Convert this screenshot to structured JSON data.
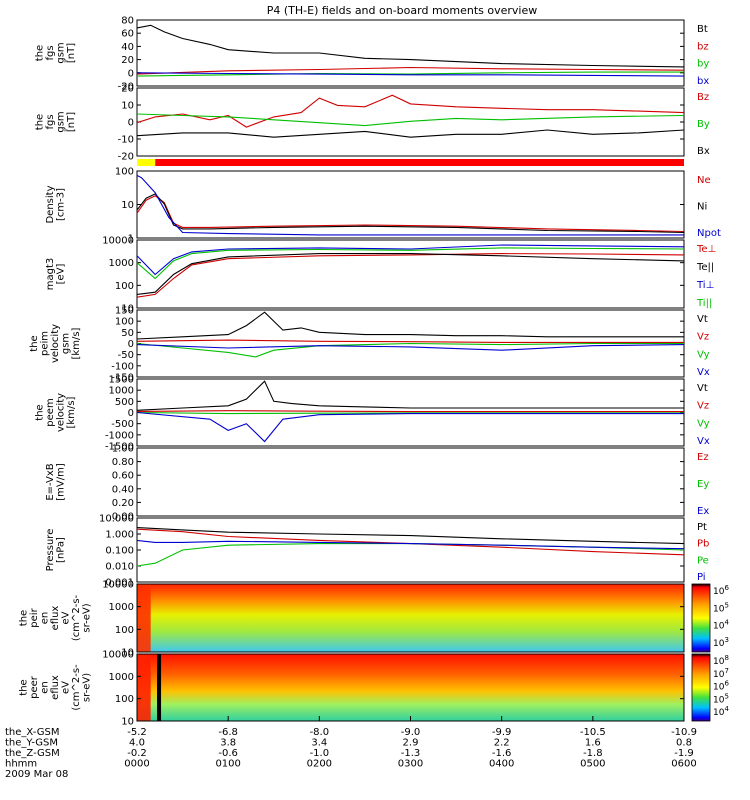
{
  "chart_data": {
    "type": "line",
    "title": "P4 (TH-E) fields and on-board moments overview",
    "date_label": "2009 Mar 08",
    "x_rows": [
      {
        "name": "the_X-GSM",
        "values": [
          "-5.2",
          "-6.8",
          "-8.0",
          "-9.0",
          "-9.9",
          "-10.5",
          "-10.9"
        ]
      },
      {
        "name": "the_Y-GSM",
        "values": [
          "4.0",
          "3.8",
          "3.4",
          "2.9",
          "2.2",
          "1.6",
          "0.8"
        ]
      },
      {
        "name": "the_Z-GSM",
        "values": [
          "-0.2",
          "-0.6",
          "-1.0",
          "-1.3",
          "-1.6",
          "-1.8",
          "-1.9"
        ]
      },
      {
        "name": "hhmm",
        "values": [
          "0000",
          "0100",
          "0200",
          "0300",
          "0400",
          "0500",
          "0600"
        ]
      }
    ],
    "x_range_hours": [
      0,
      6
    ],
    "panels": [
      {
        "id": "fgs_mag",
        "ylabel_lines": [
          "the",
          "fgs",
          "gsm",
          "[nT]"
        ],
        "ytick_labels": [
          "80",
          "60",
          "40",
          "20",
          "0",
          "-20"
        ],
        "ylim": [
          -20,
          80
        ],
        "scale": "linear",
        "legend": [
          {
            "label": "Bt",
            "color": "#000000"
          },
          {
            "label": "bz",
            "color": "#d00000"
          },
          {
            "label": "by",
            "color": "#00c000"
          },
          {
            "label": "bx",
            "color": "#0000d0"
          }
        ]
      },
      {
        "id": "fgs_comp",
        "ylabel_lines": [
          "the",
          "fgs",
          "gsm",
          "[nT]"
        ],
        "ytick_labels": [
          "20",
          "10",
          "0",
          "-10",
          "-20"
        ],
        "ylim": [
          -25,
          22
        ],
        "scale": "linear",
        "legend": [
          {
            "label": "Bz",
            "color": "#d00000"
          },
          {
            "label": "By",
            "color": "#00c000"
          },
          {
            "label": "Bx",
            "color": "#000000"
          }
        ]
      },
      {
        "id": "density",
        "ylabel_lines": [
          "Density",
          "[cm-3]"
        ],
        "ytick_labels": [
          "100",
          "10",
          "1"
        ],
        "ylim": [
          0.3,
          150
        ],
        "scale": "log",
        "legend": [
          {
            "label": "Ne",
            "color": "#d00000"
          },
          {
            "label": "Ni",
            "color": "#000000"
          },
          {
            "label": "Npot",
            "color": "#0000d0"
          }
        ]
      },
      {
        "id": "temperature",
        "ylabel_lines": [
          "magt3",
          "[eV]"
        ],
        "ytick_labels": [
          "10000",
          "1000",
          "100",
          "10"
        ],
        "ylim": [
          10,
          10000
        ],
        "scale": "log",
        "legend": [
          {
            "label": "Te⊥",
            "color": "#d00000"
          },
          {
            "label": "Te||",
            "color": "#000000"
          },
          {
            "label": "Ti⊥",
            "color": "#0000d0"
          },
          {
            "label": "Ti||",
            "color": "#00c000"
          }
        ]
      },
      {
        "id": "peim_velocity",
        "ylabel_lines": [
          "the",
          "peim",
          "velocity",
          "gsm",
          "[km/s]"
        ],
        "ytick_labels": [
          "150",
          "100",
          "50",
          "0",
          "-50",
          "-100",
          "-150"
        ],
        "ylim": [
          -150,
          150
        ],
        "scale": "linear",
        "legend": [
          {
            "label": "Vt",
            "color": "#000000"
          },
          {
            "label": "Vz",
            "color": "#d00000"
          },
          {
            "label": "Vy",
            "color": "#00c000"
          },
          {
            "label": "Vx",
            "color": "#0000d0"
          }
        ]
      },
      {
        "id": "peem_velocity",
        "ylabel_lines": [
          "the",
          "peem",
          "velocity",
          "[km/s]"
        ],
        "ytick_labels": [
          "1500",
          "1000",
          "500",
          "0",
          "-500",
          "-1000",
          "-1500"
        ],
        "ylim": [
          -1500,
          1500
        ],
        "scale": "linear",
        "legend": [
          {
            "label": "Vt",
            "color": "#000000"
          },
          {
            "label": "Vz",
            "color": "#d00000"
          },
          {
            "label": "Vy",
            "color": "#00c000"
          },
          {
            "label": "Vx",
            "color": "#0000d0"
          }
        ]
      },
      {
        "id": "efield",
        "ylabel_lines": [
          "E=-VxB",
          "[mV/m]"
        ],
        "ytick_labels": [
          "1.00",
          "0.80",
          "0.60",
          "0.40",
          "0.20",
          "0.00"
        ],
        "ylim": [
          0,
          1
        ],
        "scale": "linear",
        "legend": [
          {
            "label": "Ez",
            "color": "#d00000"
          },
          {
            "label": "Ey",
            "color": "#00c000"
          },
          {
            "label": "Ex",
            "color": "#0000d0"
          }
        ]
      },
      {
        "id": "pressure",
        "ylabel_lines": [
          "Pressure",
          "[nPa]"
        ],
        "ytick_labels": [
          "10.000",
          "1.000",
          "0.100",
          "0.010",
          "0.001"
        ],
        "ylim": [
          0.001,
          10
        ],
        "scale": "log",
        "legend": [
          {
            "label": "Pt",
            "color": "#000000"
          },
          {
            "label": "Pb",
            "color": "#d00000"
          },
          {
            "label": "Pe",
            "color": "#00c000"
          },
          {
            "label": "Pi",
            "color": "#0000d0"
          }
        ]
      },
      {
        "id": "ion_spectrogram",
        "ylabel_lines": [
          "the",
          "peir",
          "en",
          "eflux",
          "eV",
          "(cm^2-s-",
          "sr-eV)"
        ],
        "ytick_labels": [
          "10000",
          "1000",
          "100",
          "10"
        ],
        "ylim": [
          7,
          25000
        ],
        "scale": "log",
        "type": "spectrogram",
        "colorbar_labels": [
          "10^6",
          "10^5",
          "10^4",
          "10^3"
        ]
      },
      {
        "id": "electron_spectrogram",
        "ylabel_lines": [
          "the",
          "peer",
          "en",
          "eflux",
          "eV",
          "(cm^2-s-",
          "sr-eV)"
        ],
        "ytick_labels": [
          "10000",
          "1000",
          "100",
          "10"
        ],
        "ylim": [
          7,
          25000
        ],
        "scale": "log",
        "type": "spectrogram",
        "colorbar_labels": [
          "10^8",
          "10^7",
          "10^6",
          "10^5",
          "10^4"
        ]
      }
    ],
    "mode_bar": {
      "segments": [
        {
          "from": 0,
          "to": 0.2,
          "color": "#ffff00"
        },
        {
          "from": 0.2,
          "to": 6,
          "color": "#ff0000"
        }
      ]
    },
    "series": [
      {
        "panel": "fgs_mag",
        "name": "Bt",
        "color": "#000000",
        "x": [
          0,
          0.15,
          0.3,
          0.5,
          0.8,
          1.0,
          1.5,
          2.0,
          2.5,
          3.0,
          3.5,
          4.0,
          5.0,
          6.0
        ],
        "y": [
          68,
          72,
          62,
          52,
          43,
          35,
          30,
          30,
          22,
          20,
          17,
          14,
          11,
          9
        ]
      },
      {
        "panel": "fgs_mag",
        "name": "bz",
        "color": "#d00000",
        "x": [
          0,
          1,
          2,
          3,
          4,
          5,
          6
        ],
        "y": [
          -2,
          3,
          5,
          8,
          6,
          5,
          4
        ]
      },
      {
        "panel": "fgs_mag",
        "name": "by",
        "color": "#00c000",
        "x": [
          0,
          1,
          2,
          3,
          4,
          5,
          6
        ],
        "y": [
          -5,
          -3,
          -1,
          -2,
          0,
          1,
          1
        ]
      },
      {
        "panel": "fgs_mag",
        "name": "bx",
        "color": "#0000d0",
        "x": [
          0,
          1,
          2,
          3,
          4,
          5,
          6
        ],
        "y": [
          0,
          -1,
          -2,
          -3,
          -3,
          -4,
          -5
        ]
      },
      {
        "panel": "fgs_comp",
        "name": "Bz",
        "color": "#d00000",
        "x": [
          0,
          0.2,
          0.5,
          0.8,
          1.0,
          1.2,
          1.5,
          1.8,
          2.0,
          2.2,
          2.5,
          2.8,
          3.0,
          3.5,
          4.0,
          4.5,
          5.0,
          5.5,
          6.0
        ],
        "y": [
          -2,
          2,
          4,
          0,
          3,
          -5,
          2,
          5,
          15,
          10,
          9,
          17,
          11,
          9,
          8,
          7,
          7,
          6,
          5
        ]
      },
      {
        "panel": "fgs_comp",
        "name": "By",
        "color": "#00c000",
        "x": [
          0,
          0.5,
          1.0,
          1.5,
          2.0,
          2.5,
          3.0,
          3.5,
          4.0,
          5.0,
          6.0
        ],
        "y": [
          4,
          3,
          2,
          0,
          -2,
          -4,
          -1,
          1,
          0,
          2,
          3
        ]
      },
      {
        "panel": "fgs_comp",
        "name": "Bx",
        "color": "#000000",
        "x": [
          0,
          0.5,
          1.0,
          1.5,
          2.0,
          2.5,
          3.0,
          3.5,
          4.0,
          4.5,
          5.0,
          5.5,
          6.0
        ],
        "y": [
          -11,
          -9,
          -9,
          -12,
          -10,
          -8,
          -12,
          -10,
          -10,
          -7,
          -10,
          -9,
          -7
        ]
      },
      {
        "panel": "density",
        "name": "Ne",
        "color": "#d00000",
        "x": [
          0,
          0.1,
          0.2,
          0.3,
          0.4,
          0.5,
          0.8,
          1.5,
          2.5,
          3.5,
          4.5,
          5.5,
          6.0
        ],
        "y": [
          3,
          10,
          15,
          8,
          1.2,
          0.8,
          0.8,
          0.9,
          1.0,
          0.9,
          0.7,
          0.6,
          0.55
        ]
      },
      {
        "panel": "density",
        "name": "Ni",
        "color": "#000000",
        "x": [
          0,
          0.1,
          0.2,
          0.3,
          0.4,
          0.5,
          0.8,
          1.5,
          2.5,
          3.5,
          4.5,
          5.5,
          6.0
        ],
        "y": [
          4,
          12,
          18,
          7,
          1.0,
          0.7,
          0.7,
          0.8,
          0.9,
          0.8,
          0.6,
          0.55,
          0.5
        ]
      },
      {
        "panel": "density",
        "name": "Npot",
        "color": "#0000d0",
        "x": [
          0,
          0.05,
          0.2,
          0.35,
          0.5,
          1.0,
          2.0,
          3.0,
          4.0,
          5.0,
          6.0
        ],
        "y": [
          100,
          80,
          20,
          2,
          0.5,
          0.45,
          0.4,
          0.4,
          0.4,
          0.4,
          0.4
        ]
      },
      {
        "panel": "temperature",
        "name": "Te⊥",
        "color": "#d00000",
        "x": [
          0,
          0.2,
          0.4,
          0.6,
          1.0,
          2.0,
          3.0,
          4.0,
          5.0,
          6.0
        ],
        "y": [
          30,
          40,
          200,
          800,
          1500,
          2000,
          2200,
          2500,
          2400,
          2200
        ]
      },
      {
        "panel": "temperature",
        "name": "Te||",
        "color": "#000000",
        "x": [
          0,
          0.2,
          0.4,
          0.6,
          1.0,
          2.0,
          3.0,
          4.0,
          5.0,
          6.0
        ],
        "y": [
          40,
          50,
          300,
          900,
          1800,
          2500,
          2500,
          2000,
          1500,
          1200
        ]
      },
      {
        "panel": "temperature",
        "name": "Ti⊥",
        "color": "#0000d0",
        "x": [
          0,
          0.2,
          0.4,
          0.6,
          1.0,
          2.0,
          3.0,
          4.0,
          5.0,
          6.0
        ],
        "y": [
          2000,
          300,
          1500,
          3000,
          4000,
          4500,
          4000,
          6000,
          5500,
          5000
        ]
      },
      {
        "panel": "temperature",
        "name": "Ti||",
        "color": "#00c000",
        "x": [
          0,
          0.2,
          0.4,
          0.6,
          1.0,
          2.0,
          3.0,
          4.0,
          5.0,
          6.0
        ],
        "y": [
          1000,
          200,
          1200,
          2500,
          3500,
          3800,
          3500,
          4500,
          4200,
          4000
        ]
      },
      {
        "panel": "peim_velocity",
        "name": "Vt",
        "color": "#000000",
        "x": [
          0,
          0.5,
          1.0,
          1.2,
          1.4,
          1.6,
          1.8,
          2.0,
          2.5,
          3.0,
          3.5,
          4.0,
          4.5,
          5.0,
          5.5,
          6.0
        ],
        "y": [
          20,
          30,
          40,
          80,
          140,
          60,
          70,
          50,
          40,
          40,
          35,
          35,
          30,
          30,
          30,
          30
        ]
      },
      {
        "panel": "peim_velocity",
        "name": "Vz",
        "color": "#d00000",
        "x": [
          0,
          1,
          2,
          3,
          4,
          5,
          6
        ],
        "y": [
          10,
          15,
          10,
          8,
          5,
          5,
          5
        ]
      },
      {
        "panel": "peim_velocity",
        "name": "Vy",
        "color": "#00c000",
        "x": [
          0,
          0.5,
          1.0,
          1.3,
          1.5,
          2.0,
          3.0,
          4.0,
          5.0,
          6.0
        ],
        "y": [
          0,
          -20,
          -40,
          -60,
          -30,
          -10,
          0,
          -5,
          0,
          0
        ]
      },
      {
        "panel": "peim_velocity",
        "name": "Vx",
        "color": "#0000d0",
        "x": [
          0,
          1,
          2,
          3,
          4,
          5,
          6
        ],
        "y": [
          -5,
          -20,
          -10,
          -15,
          -30,
          -10,
          -5
        ]
      },
      {
        "panel": "peem_velocity",
        "name": "Vt",
        "color": "#000000",
        "x": [
          0,
          0.5,
          1.0,
          1.2,
          1.4,
          1.5,
          1.7,
          2.0,
          2.5,
          3.0,
          4.0,
          5.0,
          6.0
        ],
        "y": [
          100,
          200,
          300,
          600,
          1400,
          500,
          400,
          300,
          250,
          200,
          200,
          200,
          200
        ]
      },
      {
        "panel": "peem_velocity",
        "name": "Vz",
        "color": "#d00000",
        "x": [
          0,
          1,
          2,
          3,
          4,
          5,
          6
        ],
        "y": [
          50,
          80,
          60,
          40,
          40,
          40,
          40
        ]
      },
      {
        "panel": "peem_velocity",
        "name": "Vy",
        "color": "#00c000",
        "x": [
          0,
          1,
          2,
          3,
          4,
          5,
          6
        ],
        "y": [
          0,
          -50,
          -30,
          -20,
          -20,
          -20,
          -20
        ]
      },
      {
        "panel": "peem_velocity",
        "name": "Vx",
        "color": "#0000d0",
        "x": [
          0,
          0.8,
          1.0,
          1.2,
          1.4,
          1.6,
          2.0,
          3.0,
          4.0,
          5.0,
          6.0
        ],
        "y": [
          0,
          -300,
          -800,
          -500,
          -1300,
          -300,
          -100,
          -50,
          -50,
          -50,
          -50
        ]
      },
      {
        "panel": "pressure",
        "name": "Pt",
        "color": "#000000",
        "x": [
          0,
          0.5,
          1.0,
          2.0,
          3.0,
          4.0,
          5.0,
          6.0
        ],
        "y": [
          2.5,
          1.8,
          1.3,
          1.0,
          0.8,
          0.5,
          0.35,
          0.25
        ]
      },
      {
        "panel": "pressure",
        "name": "Pb",
        "color": "#d00000",
        "x": [
          0,
          0.5,
          1.0,
          2.0,
          3.0,
          4.0,
          5.0,
          6.0
        ],
        "y": [
          2.0,
          1.4,
          0.7,
          0.4,
          0.25,
          0.15,
          0.08,
          0.05
        ]
      },
      {
        "panel": "pressure",
        "name": "Pe",
        "color": "#00c000",
        "x": [
          0,
          0.2,
          0.5,
          1.0,
          2.0,
          3.0,
          4.0,
          5.0,
          6.0
        ],
        "y": [
          0.01,
          0.015,
          0.1,
          0.2,
          0.25,
          0.25,
          0.2,
          0.15,
          0.1
        ]
      },
      {
        "panel": "pressure",
        "name": "Pi",
        "color": "#0000d0",
        "x": [
          0,
          0.2,
          0.5,
          1.0,
          2.0,
          3.0,
          4.0,
          5.0,
          6.0
        ],
        "y": [
          0.4,
          0.3,
          0.3,
          0.35,
          0.3,
          0.25,
          0.2,
          0.15,
          0.12
        ]
      }
    ]
  }
}
